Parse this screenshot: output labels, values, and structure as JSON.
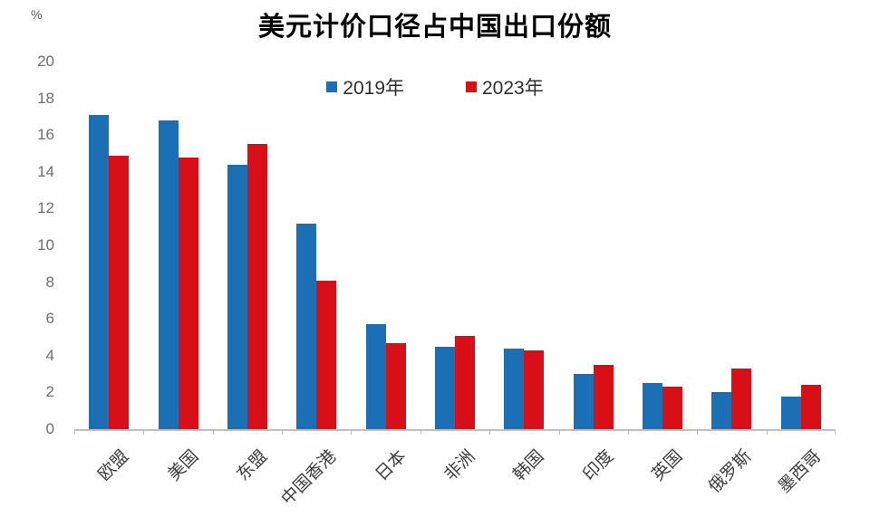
{
  "chart_data": {
    "type": "bar",
    "title": "美元计价口径占中国出口份额",
    "ylabel": "%",
    "categories": [
      "欧盟",
      "美国",
      "东盟",
      "中国香港",
      "日本",
      "非洲",
      "韩国",
      "印度",
      "英国",
      "俄罗斯",
      "墨西哥"
    ],
    "series": [
      {
        "name": "2019年",
        "key": "2019",
        "color": "#1b6fb5",
        "values": [
          17.1,
          16.8,
          14.4,
          11.2,
          5.7,
          4.5,
          4.4,
          3.0,
          2.5,
          2.0,
          1.8
        ]
      },
      {
        "name": "2023年",
        "key": "2023",
        "color": "#d90f18",
        "values": [
          14.9,
          14.8,
          15.5,
          8.1,
          4.7,
          5.1,
          4.3,
          3.5,
          2.3,
          3.3,
          2.4
        ]
      }
    ],
    "ylim": [
      0,
      20
    ],
    "ytick_step": 2,
    "yticks": [
      0,
      2,
      4,
      6,
      8,
      10,
      12,
      14,
      16,
      18,
      20
    ],
    "grid": false,
    "legend_position": "top-center",
    "axis_color": "#bfbfbf",
    "background": "#ffffff"
  }
}
